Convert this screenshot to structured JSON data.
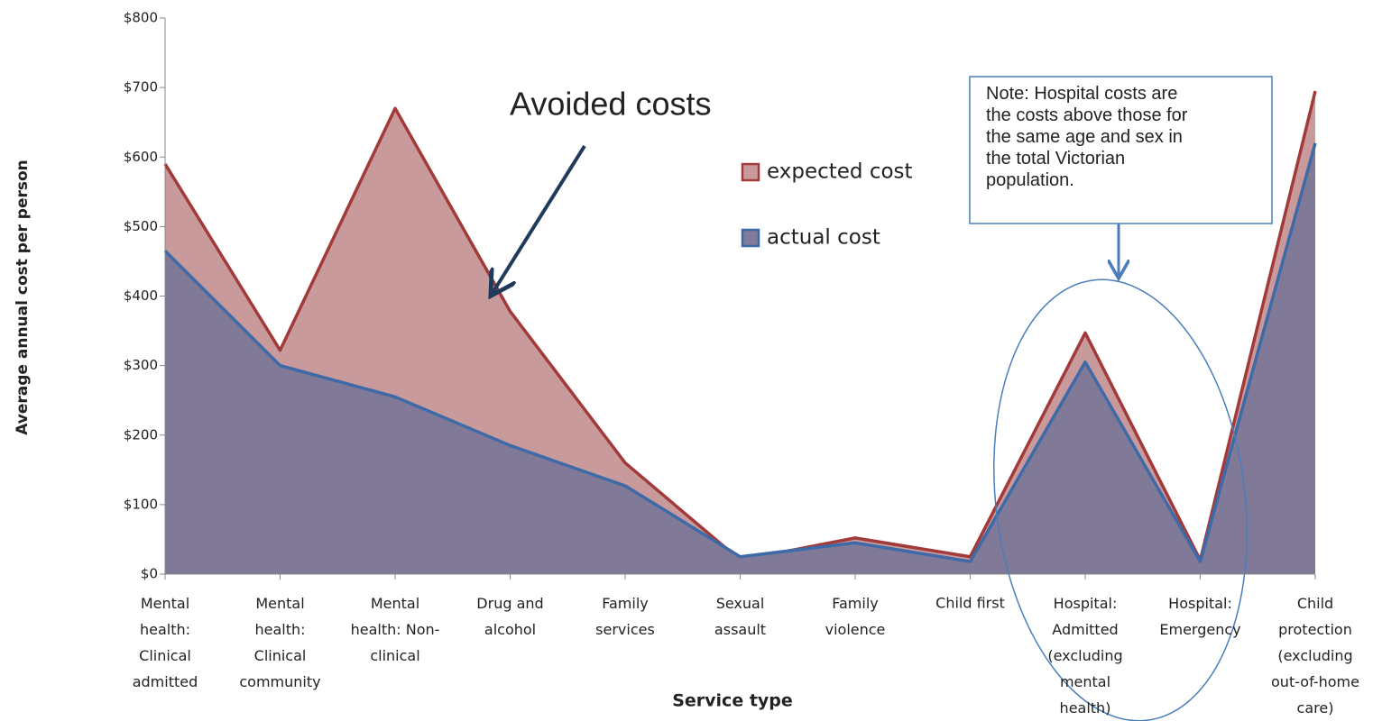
{
  "chart_data": {
    "type": "area",
    "y_label": "Average annual cost per person",
    "x_label": "Service type",
    "categories": [
      "Mental\nhealth:\nClinical\nadmitted",
      "Mental\nhealth:\nClinical\ncommunity",
      "Mental\nhealth: Non-\nclinical",
      "Drug and\nalcohol",
      "Family\nservices",
      "Sexual\nassault",
      "Family\nviolence",
      "Child first",
      "Hospital:\nAdmitted\n(excluding\nmental\nhealth)",
      "Hospital:\nEmergency",
      "Child\nprotection\n(excluding\nout-of-home\ncare)"
    ],
    "series": [
      {
        "name": "expected cost",
        "color": "#c99a9b",
        "edge_color": "#a33a3a",
        "values": [
          590,
          322,
          670,
          378,
          160,
          20,
          52,
          25,
          347,
          20,
          695
        ]
      },
      {
        "name": "actual cost",
        "color": "#807a98",
        "edge_color": "#3e6aa8",
        "values": [
          465,
          300,
          255,
          185,
          127,
          25,
          45,
          18,
          305,
          18,
          620
        ]
      }
    ],
    "ylim": [
      0,
      800
    ],
    "yticks": [
      {
        "value": 0,
        "label": "$0"
      },
      {
        "value": 100,
        "label": "$100"
      },
      {
        "value": 200,
        "label": "$200"
      },
      {
        "value": 300,
        "label": "$300"
      },
      {
        "value": 400,
        "label": "$400"
      },
      {
        "value": 500,
        "label": "$500"
      },
      {
        "value": 600,
        "label": "$600"
      },
      {
        "value": 700,
        "label": "$700"
      },
      {
        "value": 800,
        "label": "$800"
      }
    ],
    "annotations": [
      "Avoided costs",
      "Note: Hospital costs are\nthe costs above those for\nthe same age and sex in\nthe total Victorian\npopulation."
    ]
  }
}
